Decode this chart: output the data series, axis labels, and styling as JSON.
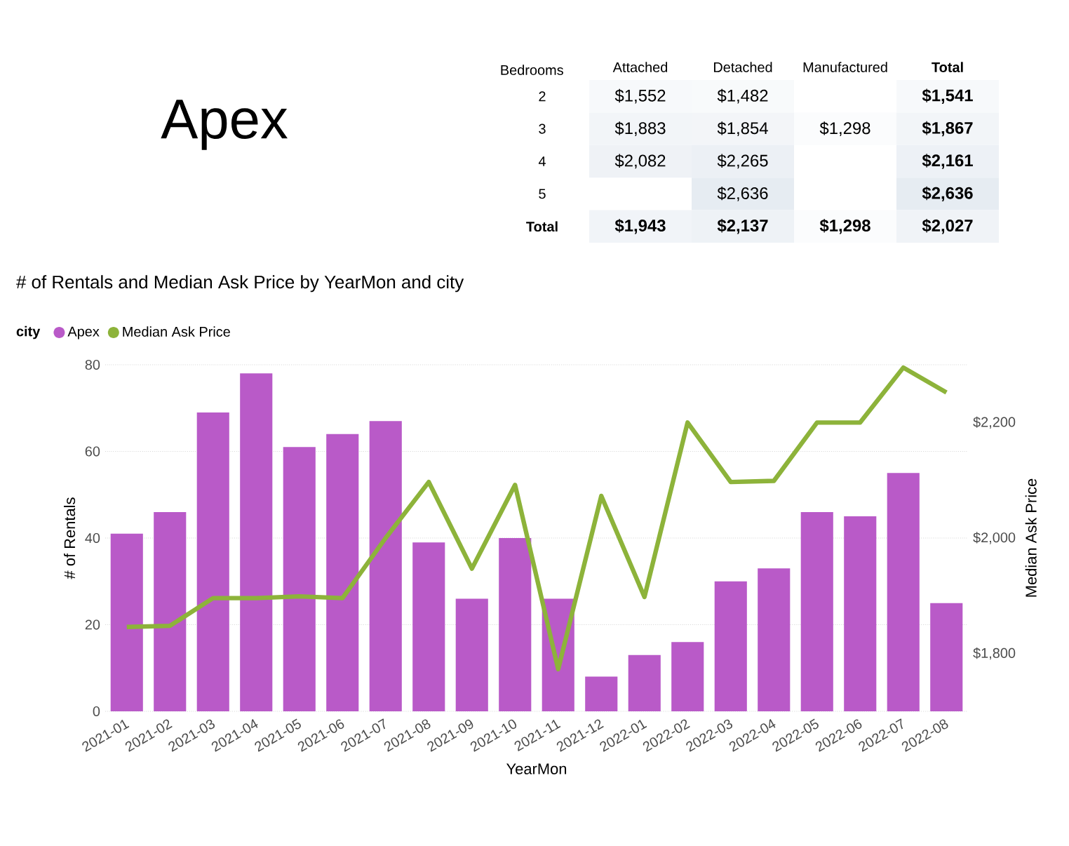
{
  "chart_data": [
    {
      "type": "other",
      "title": "Apex"
    },
    {
      "type": "heatmap",
      "ylabel": "Bedrooms",
      "categories": [
        "Attached",
        "Detached",
        "Manufactured",
        "Total"
      ],
      "y_categories": [
        "2",
        "3",
        "4",
        "5",
        "Total"
      ],
      "cells": [
        [
          1552,
          1482,
          null,
          1541
        ],
        [
          1883,
          1854,
          1298,
          1867
        ],
        [
          2082,
          2265,
          null,
          2161
        ],
        [
          null,
          2636,
          null,
          2636
        ],
        [
          1943,
          2137,
          1298,
          2027
        ]
      ],
      "cell_labels": [
        [
          "$1,552",
          "$1,482",
          null,
          "$1,541"
        ],
        [
          "$1,883",
          "$1,854",
          "$1,298",
          "$1,867"
        ],
        [
          "$2,082",
          "$2,265",
          null,
          "$2,161"
        ],
        [
          null,
          "$2,636",
          null,
          "$2,636"
        ],
        [
          "$1,943",
          "$2,137",
          "$1,298",
          "$2,027"
        ]
      ]
    },
    {
      "type": "bar",
      "title": "# of Rentals and Median Ask Price by YearMon and city",
      "xlabel": "YearMon",
      "ylabel": "# of Rentals",
      "y2label": "Median Ask Price",
      "legend_title": "city",
      "categories": [
        "2021-01",
        "2021-02",
        "2021-03",
        "2021-04",
        "2021-05",
        "2021-06",
        "2021-07",
        "2021-08",
        "2021-09",
        "2021-10",
        "2021-11",
        "2021-12",
        "2022-01",
        "2022-02",
        "2022-03",
        "2022-04",
        "2022-05",
        "2022-06",
        "2022-07",
        "2022-08"
      ],
      "series": [
        {
          "name": "Apex",
          "color": "#b95ac8",
          "values": [
            41,
            46,
            69,
            78,
            61,
            64,
            67,
            39,
            26,
            40,
            26,
            8,
            13,
            16,
            30,
            33,
            46,
            45,
            55,
            25
          ]
        },
        {
          "name": "Median Ask Price",
          "type": "line",
          "axis": "y2",
          "color": "#8db33a",
          "values": [
            1846,
            1848,
            1896,
            1896,
            1899,
            1896,
            2000,
            2097,
            1947,
            2092,
            1773,
            2073,
            1898,
            2200,
            2097,
            2099,
            2200,
            2200,
            2295,
            2252
          ]
        }
      ],
      "ylim": [
        0,
        80
      ],
      "yticks": [
        0,
        20,
        40,
        60,
        80
      ],
      "y2lim": [
        1700,
        2300
      ],
      "y2ticks": [
        {
          "value": 1800,
          "label": "$1,800"
        },
        {
          "value": 2000,
          "label": "$2,000"
        },
        {
          "value": 2200,
          "label": "$2,200"
        }
      ],
      "grid": "y",
      "legend": "top left"
    }
  ]
}
